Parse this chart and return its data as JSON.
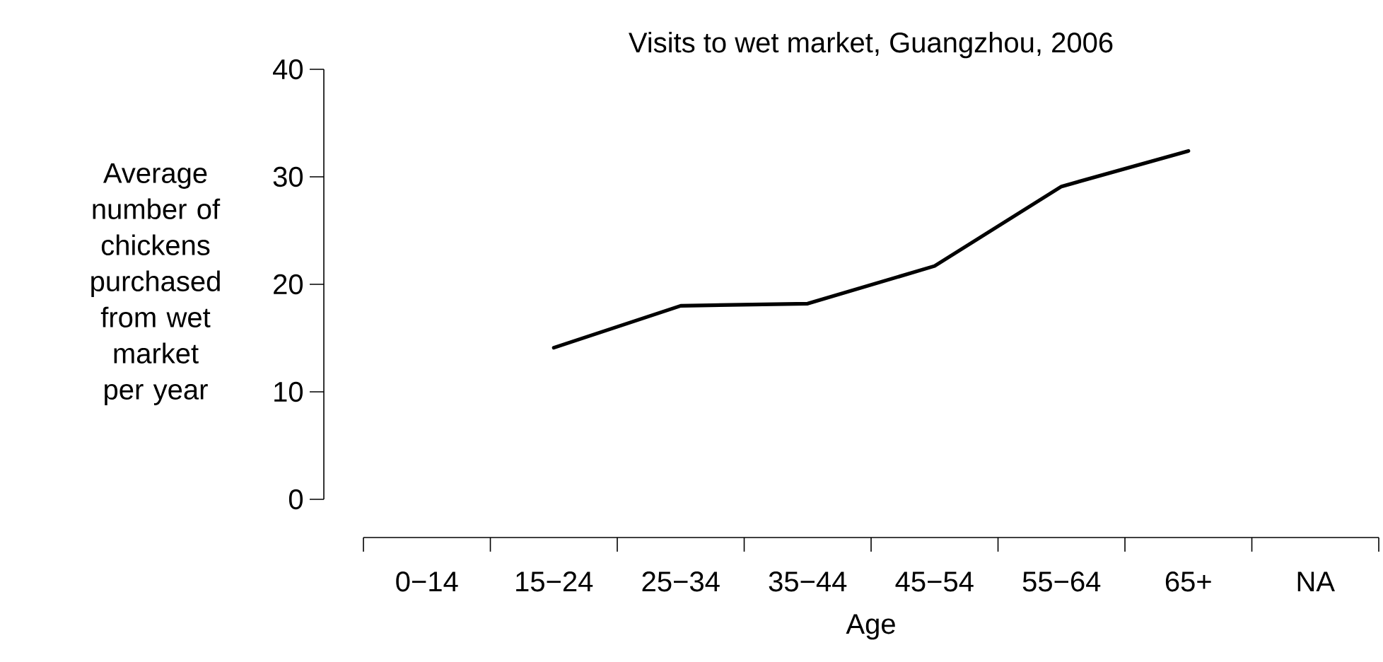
{
  "chart_data": {
    "type": "line",
    "title": "Visits to wet market, Guangzhou, 2006",
    "xlabel": "Age",
    "ylabel": "Average number of chickens purchased from wet market per year",
    "categories": [
      "0−14",
      "15−24",
      "25−34",
      "35−44",
      "45−54",
      "55−64",
      "65+",
      "NA"
    ],
    "series": [
      {
        "color": "#000000",
        "values": [
          null,
          14.1,
          18.0,
          18.2,
          21.7,
          29.1,
          32.4,
          null
        ]
      }
    ],
    "ylim": [
      0,
      40
    ],
    "yticks": [
      0,
      10,
      20,
      30,
      40
    ]
  }
}
